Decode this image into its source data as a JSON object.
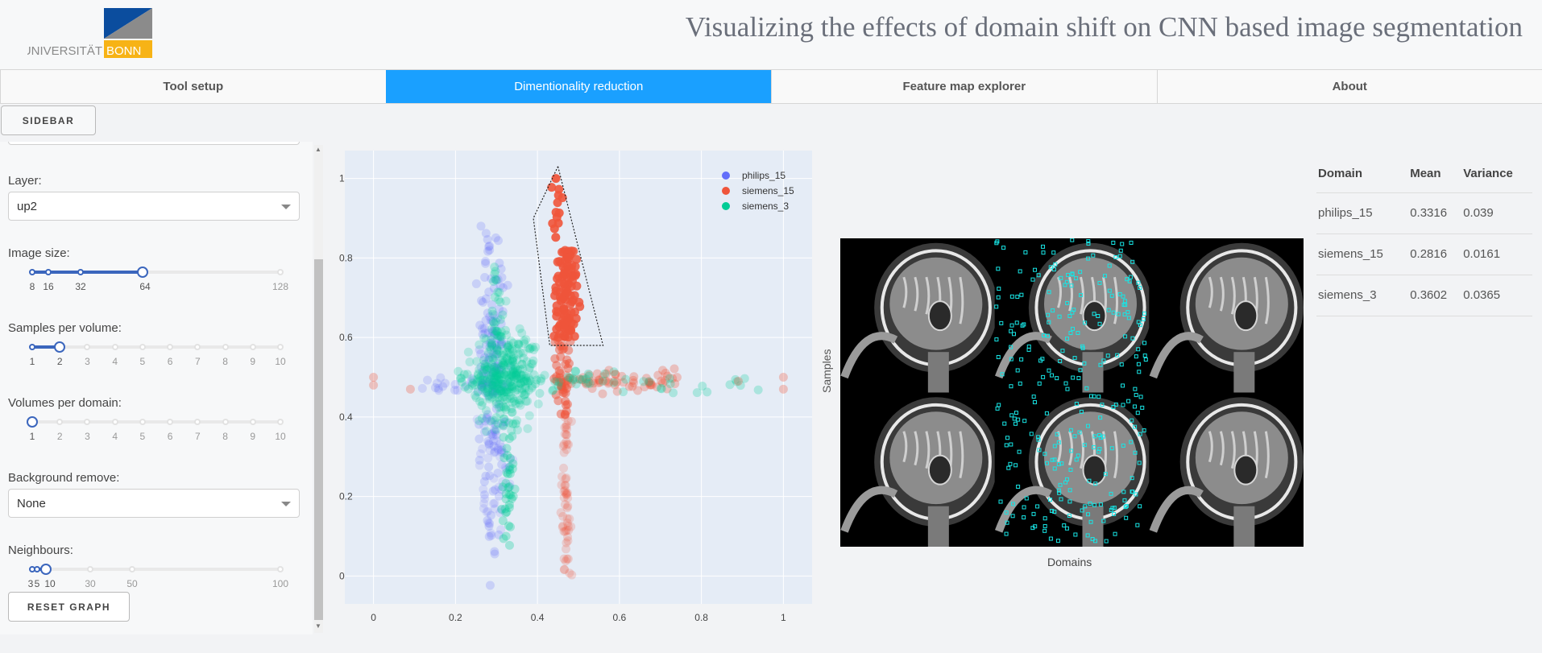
{
  "header": {
    "title": "Visualizing the effects of domain shift on CNN based image segmentation",
    "logo_text_left": "UNIVERSITÄT",
    "logo_text_right": "BONN"
  },
  "tabs": [
    {
      "label": "Tool setup",
      "active": false
    },
    {
      "label": "Dimentionality reduction",
      "active": true
    },
    {
      "label": "Feature map explorer",
      "active": false
    },
    {
      "label": "About",
      "active": false
    }
  ],
  "sidebar_toggle_label": "SIDEBAR",
  "sidebar": {
    "layer": {
      "label": "Layer:",
      "value": "up2"
    },
    "image_size": {
      "label": "Image size:",
      "marks": [
        "8",
        "16",
        "32",
        "64",
        "128"
      ],
      "value": "64"
    },
    "samples_per_volume": {
      "label": "Samples per volume:",
      "marks": [
        "1",
        "2",
        "3",
        "4",
        "5",
        "6",
        "7",
        "8",
        "9",
        "10"
      ],
      "value": 2
    },
    "volumes_per_domain": {
      "label": "Volumes per domain:",
      "marks": [
        "1",
        "2",
        "3",
        "4",
        "5",
        "6",
        "7",
        "8",
        "9",
        "10"
      ],
      "value": 1
    },
    "background_remove": {
      "label": "Background remove:",
      "value": "None"
    },
    "neighbours": {
      "label": "Neighbours:",
      "marks": [
        "3",
        "5",
        "10",
        "30",
        "50",
        "100"
      ],
      "value": 10
    },
    "reset_label": "RESET GRAPH"
  },
  "chart_data": {
    "type": "scatter",
    "xlim": [
      -0.07,
      1.07
    ],
    "ylim": [
      -0.07,
      1.07
    ],
    "x_ticks": [
      "0",
      "0.2",
      "0.4",
      "0.6",
      "0.8",
      "1"
    ],
    "y_ticks": [
      "0",
      "0.2",
      "0.4",
      "0.6",
      "0.8",
      "1"
    ],
    "legend_position": "top-right",
    "series": [
      {
        "name": "philips_15",
        "color": "#636efa"
      },
      {
        "name": "siemens_15",
        "color": "#ef553b"
      },
      {
        "name": "siemens_3",
        "color": "#00cc96"
      }
    ],
    "lasso": [
      [
        0.45,
        1.03
      ],
      [
        0.56,
        0.58
      ],
      [
        0.43,
        0.58
      ],
      [
        0.39,
        0.9
      ],
      [
        0.45,
        1.03
      ]
    ]
  },
  "image_grid": {
    "y_label": "Samples",
    "x_label": "Domains"
  },
  "stats_table": {
    "headers": [
      "Domain",
      "Mean",
      "Variance"
    ],
    "rows": [
      [
        "philips_15",
        "0.3316",
        "0.039"
      ],
      [
        "siemens_15",
        "0.2816",
        "0.0161"
      ],
      [
        "siemens_3",
        "0.3602",
        "0.0365"
      ]
    ]
  },
  "colors": {
    "accent": "#1aa0ff",
    "slider": "#3b66bd",
    "logo_blue": "#0b4d9e",
    "logo_yellow": "#f7b316"
  }
}
